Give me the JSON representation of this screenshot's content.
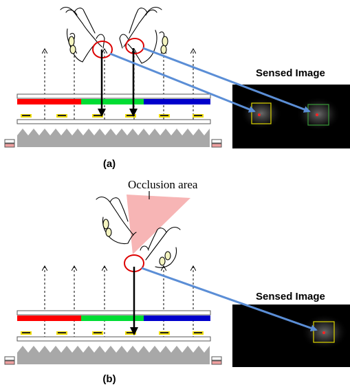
{
  "panels": [
    {
      "label": "(a)",
      "sensed_title": "Sensed Image",
      "touch_points": 2
    },
    {
      "label": "(b)",
      "sensed_title": "Sensed Image",
      "touch_points": 1,
      "annotation": "Occlusion area"
    }
  ],
  "colors": {
    "red_segment": "#ff0000",
    "green_segment": "#00dd33",
    "blue_segment": "#0000cc",
    "arrow": "#000000",
    "link_arrow": "#5b8ed6",
    "highlight_circle": "#dd0000",
    "occlusion_fill": "#f7b5b5",
    "sensed_bg": "#000000",
    "box": "#e0d800"
  }
}
